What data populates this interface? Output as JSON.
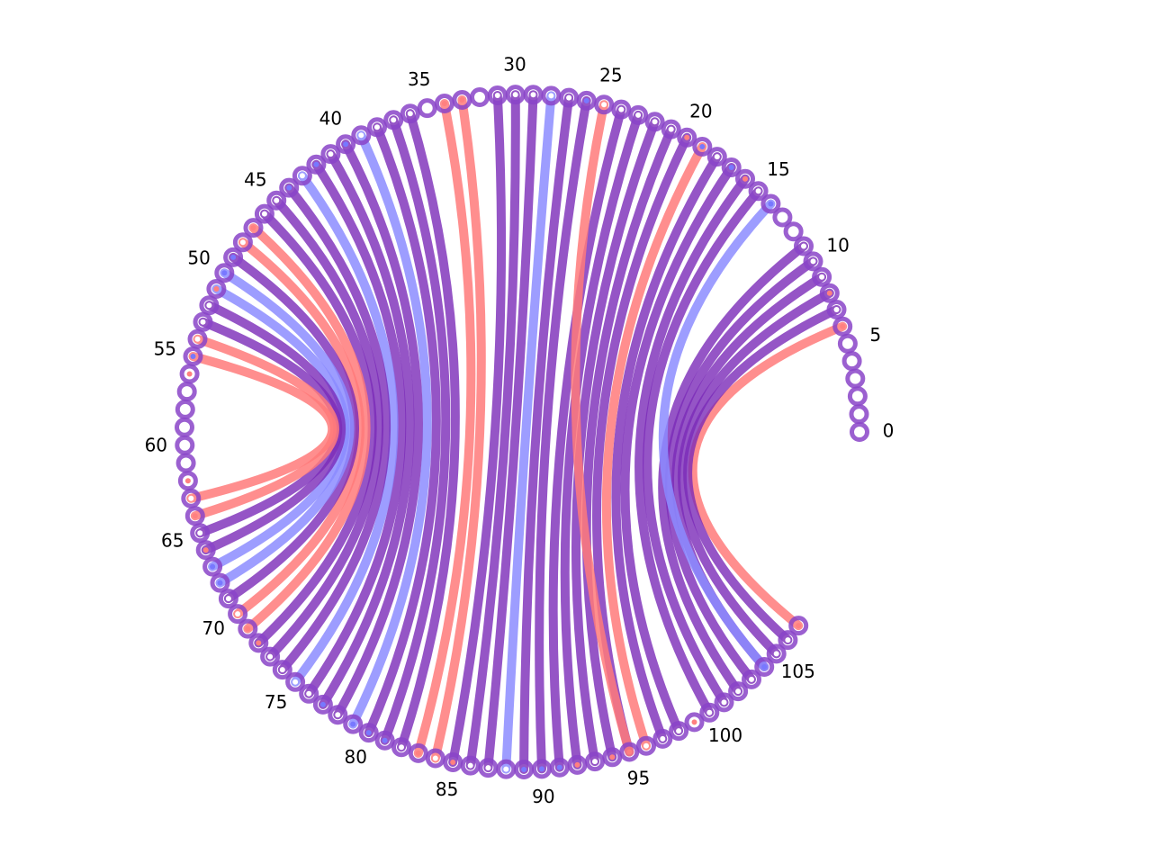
{
  "diagram": {
    "type": "circular-arc-diagram",
    "node_count": 108,
    "tick_labels": [
      "0",
      "5",
      "10",
      "15",
      "20",
      "25",
      "30",
      "35",
      "40",
      "45",
      "50",
      "55",
      "60",
      "65",
      "70",
      "75",
      "80",
      "85",
      "90",
      "95",
      "100",
      "105"
    ],
    "colors": {
      "paired": "#7a2ab8",
      "red": "#ff7a7a",
      "blue": "#8c8cff",
      "node_edge": "#8a44c8"
    },
    "node_fill_kind": {
      "pink": [
        6,
        8,
        16,
        20,
        33,
        34,
        47,
        51,
        56,
        62,
        64,
        66,
        71,
        72,
        83,
        85,
        92,
        94,
        95,
        99,
        107
      ],
      "blue": [
        14,
        17,
        19,
        26,
        40,
        42,
        44,
        49,
        50,
        55,
        67,
        68,
        77,
        79,
        80,
        81,
        83,
        85,
        89,
        90,
        91,
        104
      ]
    },
    "pairs": [
      {
        "a": 6,
        "b": 107,
        "kind": "red"
      },
      {
        "a": 7,
        "b": 106,
        "kind": "paired"
      },
      {
        "a": 8,
        "b": 105,
        "kind": "paired"
      },
      {
        "a": 9,
        "b": 104,
        "kind": "paired"
      },
      {
        "a": 10,
        "b": 103,
        "kind": "paired"
      },
      {
        "a": 11,
        "b": 102,
        "kind": "paired"
      },
      {
        "a": 14,
        "b": 104,
        "kind": "blue"
      },
      {
        "a": 15,
        "b": 101,
        "kind": "paired"
      },
      {
        "a": 16,
        "b": 100,
        "kind": "paired"
      },
      {
        "a": 17,
        "b": 98,
        "kind": "paired"
      },
      {
        "a": 18,
        "b": 97,
        "kind": "paired"
      },
      {
        "a": 19,
        "b": 96,
        "kind": "red"
      },
      {
        "a": 20,
        "b": 95,
        "kind": "paired"
      },
      {
        "a": 21,
        "b": 94,
        "kind": "paired"
      },
      {
        "a": 22,
        "b": 93,
        "kind": "paired"
      },
      {
        "a": 23,
        "b": 92,
        "kind": "paired"
      },
      {
        "a": 24,
        "b": 91,
        "kind": "paired"
      },
      {
        "a": 25,
        "b": 95,
        "kind": "red"
      },
      {
        "a": 26,
        "b": 90,
        "kind": "paired"
      },
      {
        "a": 27,
        "b": 89,
        "kind": "paired"
      },
      {
        "a": 28,
        "b": 88,
        "kind": "blue"
      },
      {
        "a": 29,
        "b": 87,
        "kind": "paired"
      },
      {
        "a": 30,
        "b": 86,
        "kind": "paired"
      },
      {
        "a": 31,
        "b": 85,
        "kind": "paired"
      },
      {
        "a": 33,
        "b": 84,
        "kind": "red"
      },
      {
        "a": 34,
        "b": 83,
        "kind": "red"
      },
      {
        "a": 36,
        "b": 82,
        "kind": "paired"
      },
      {
        "a": 37,
        "b": 81,
        "kind": "paired"
      },
      {
        "a": 38,
        "b": 80,
        "kind": "paired"
      },
      {
        "a": 39,
        "b": 79,
        "kind": "blue"
      },
      {
        "a": 40,
        "b": 78,
        "kind": "paired"
      },
      {
        "a": 41,
        "b": 77,
        "kind": "paired"
      },
      {
        "a": 42,
        "b": 76,
        "kind": "paired"
      },
      {
        "a": 43,
        "b": 75,
        "kind": "blue"
      },
      {
        "a": 44,
        "b": 74,
        "kind": "paired"
      },
      {
        "a": 45,
        "b": 73,
        "kind": "paired"
      },
      {
        "a": 46,
        "b": 72,
        "kind": "paired"
      },
      {
        "a": 47,
        "b": 71,
        "kind": "red"
      },
      {
        "a": 48,
        "b": 70,
        "kind": "red"
      },
      {
        "a": 49,
        "b": 69,
        "kind": "paired"
      },
      {
        "a": 50,
        "b": 68,
        "kind": "blue"
      },
      {
        "a": 51,
        "b": 67,
        "kind": "blue"
      },
      {
        "a": 52,
        "b": 66,
        "kind": "paired"
      },
      {
        "a": 53,
        "b": 65,
        "kind": "paired"
      },
      {
        "a": 54,
        "b": 64,
        "kind": "red"
      },
      {
        "a": 55,
        "b": 63,
        "kind": "red"
      }
    ]
  }
}
